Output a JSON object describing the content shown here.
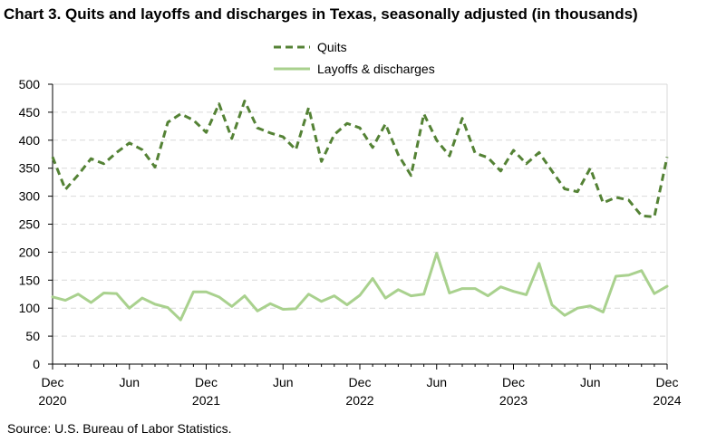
{
  "title": "Chart 3. Quits and layoffs and discharges in Texas, seasonally adjusted (in thousands)",
  "source": "Source: U.S. Bureau of Labor Statistics.",
  "chart_data": {
    "type": "line",
    "title": "Chart 3. Quits and layoffs and discharges in Texas, seasonally adjusted (in thousands)",
    "xlabel": "",
    "ylabel": "",
    "ylim": [
      0,
      500
    ],
    "yticks": [
      "0",
      "50",
      "100",
      "150",
      "200",
      "250",
      "300",
      "350",
      "400",
      "450",
      "500"
    ],
    "xtick_labels": [
      {
        "month": "Dec",
        "year": "2020",
        "index": 0
      },
      {
        "month": "Jun",
        "year": "",
        "index": 6
      },
      {
        "month": "Dec",
        "year": "2021",
        "index": 12
      },
      {
        "month": "Jun",
        "year": "",
        "index": 18
      },
      {
        "month": "Dec",
        "year": "2022",
        "index": 24
      },
      {
        "month": "Jun",
        "year": "",
        "index": 30
      },
      {
        "month": "Dec",
        "year": "2023",
        "index": 36
      },
      {
        "month": "Jun",
        "year": "",
        "index": 42
      },
      {
        "month": "Dec",
        "year": "2024",
        "index": 48
      }
    ],
    "x_start": "Dec 2020",
    "x_end": "Dec 2024",
    "grid": true,
    "legend_position": "top-center",
    "series": [
      {
        "name": "Quits",
        "color": "#548235",
        "style": "dashed",
        "values": [
          370,
          312,
          338,
          367,
          358,
          378,
          395,
          383,
          352,
          432,
          447,
          436,
          414,
          465,
          403,
          470,
          422,
          413,
          406,
          383,
          458,
          362,
          410,
          430,
          422,
          387,
          429,
          374,
          337,
          447,
          400,
          372,
          439,
          377,
          369,
          345,
          382,
          358,
          378,
          345,
          313,
          308,
          350,
          288,
          298,
          293,
          265,
          263,
          370
        ]
      },
      {
        "name": "Layoffs & discharges",
        "color": "#A9D18E",
        "style": "solid",
        "values": [
          120,
          114,
          125,
          110,
          127,
          126,
          100,
          118,
          107,
          101,
          79,
          129,
          129,
          120,
          103,
          122,
          95,
          108,
          98,
          99,
          125,
          112,
          122,
          106,
          123,
          153,
          118,
          133,
          122,
          125,
          198,
          127,
          135,
          135,
          122,
          138,
          130,
          124,
          180,
          106,
          87,
          100,
          104,
          93,
          157,
          159,
          167,
          126,
          139
        ]
      }
    ]
  }
}
